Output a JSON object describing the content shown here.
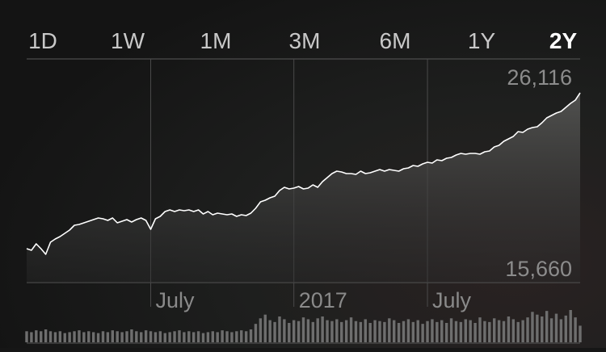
{
  "chart_data": {
    "type": "line",
    "ranges": [
      "1D",
      "1W",
      "1M",
      "3M",
      "6M",
      "1Y",
      "2Y"
    ],
    "selected_range": 6,
    "categories": [
      null,
      null,
      null,
      null,
      null,
      null,
      null,
      null,
      null,
      null,
      null,
      null,
      null,
      null,
      null,
      null,
      null,
      null,
      null,
      null,
      null,
      null,
      null,
      null,
      null,
      null,
      "July",
      null,
      null,
      null,
      null,
      null,
      null,
      null,
      null,
      null,
      null,
      null,
      null,
      null,
      null,
      null,
      null,
      null,
      null,
      null,
      null,
      null,
      null,
      null,
      null,
      null,
      null,
      null,
      null,
      null,
      "2017",
      null,
      null,
      null,
      null,
      null,
      null,
      null,
      null,
      null,
      null,
      null,
      null,
      null,
      null,
      null,
      null,
      null,
      null,
      null,
      null,
      null,
      null,
      null,
      null,
      null,
      null,
      null,
      "July",
      null,
      null,
      null,
      null,
      null,
      null,
      null,
      null,
      null,
      null,
      null,
      null,
      null,
      null,
      null,
      null,
      null,
      null,
      null,
      null,
      null,
      null,
      null,
      null,
      null,
      null,
      null,
      null,
      null,
      null,
      null,
      null
    ],
    "values": [
      16026,
      15921,
      16340,
      16026,
      15660,
      16444,
      16653,
      16810,
      17019,
      17228,
      17542,
      17594,
      17699,
      17803,
      17908,
      18013,
      17960,
      17856,
      18013,
      17699,
      17803,
      17908,
      17751,
      17908,
      18013,
      17856,
      17281,
      17960,
      18117,
      18431,
      18535,
      18431,
      18535,
      18483,
      18535,
      18431,
      18535,
      18274,
      18431,
      18222,
      18326,
      18274,
      18222,
      18274,
      18117,
      18222,
      18169,
      18326,
      18640,
      19058,
      19163,
      19320,
      19424,
      19790,
      20000,
      19895,
      19947,
      20052,
      19895,
      19947,
      20156,
      20000,
      20365,
      20627,
      20888,
      21045,
      20993,
      20888,
      20888,
      20836,
      21045,
      20888,
      20940,
      21045,
      21149,
      21045,
      21149,
      21097,
      21045,
      21202,
      21254,
      21411,
      21359,
      21516,
      21621,
      21568,
      21777,
      21725,
      21881,
      21934,
      22090,
      22195,
      22143,
      22195,
      22195,
      22143,
      22299,
      22352,
      22613,
      22718,
      22979,
      23136,
      23293,
      23607,
      23554,
      23763,
      23868,
      23920,
      24182,
      24496,
      24653,
      24809,
      24914,
      25175,
      25437,
      25646,
      26116
    ],
    "volume": [
      12,
      11,
      13,
      12,
      14,
      12,
      11,
      12,
      10,
      11,
      12,
      13,
      11,
      12,
      11,
      10,
      12,
      11,
      13,
      12,
      11,
      12,
      14,
      12,
      11,
      13,
      12,
      11,
      12,
      10,
      11,
      12,
      13,
      11,
      12,
      11,
      12,
      10,
      11,
      12,
      11,
      13,
      12,
      11,
      12,
      13,
      12,
      14,
      20,
      26,
      30,
      24,
      22,
      28,
      25,
      21,
      24,
      23,
      27,
      25,
      22,
      26,
      28,
      24,
      23,
      25,
      22,
      24,
      27,
      23,
      22,
      25,
      21,
      24,
      23,
      22,
      26,
      24,
      21,
      23,
      25,
      22,
      24,
      20,
      23,
      25,
      22,
      24,
      21,
      26,
      23,
      22,
      25,
      24,
      21,
      27,
      23,
      22,
      26,
      24,
      23,
      28,
      25,
      22,
      24,
      27,
      33,
      30,
      28,
      34,
      26,
      31,
      25,
      29,
      35,
      27,
      18
    ],
    "color": "#ffffff",
    "ylim": [
      13830,
      28312
    ],
    "yticks": [
      {
        "value": 26116,
        "label": "26,116"
      },
      {
        "value": 15660,
        "label": "15,660"
      }
    ]
  }
}
